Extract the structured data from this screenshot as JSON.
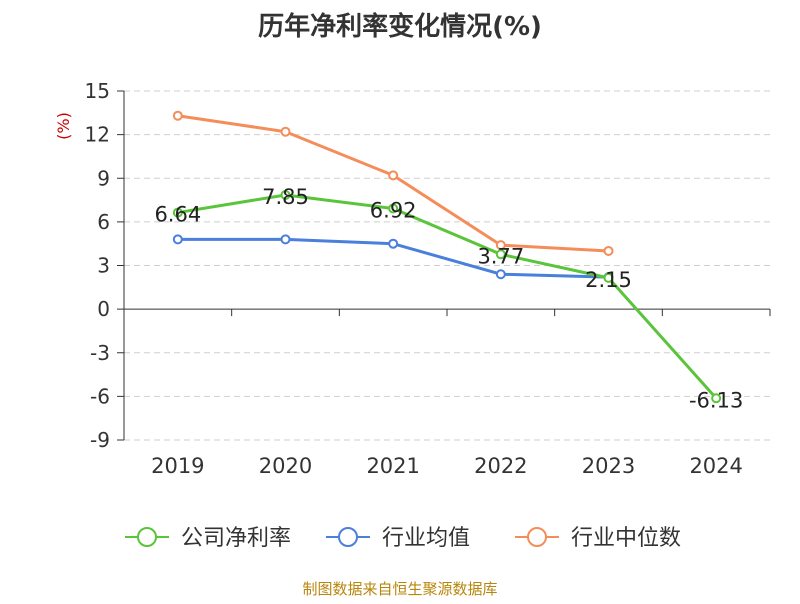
{
  "chart_data": {
    "type": "line",
    "title": "历年净利率变化情况(%)",
    "ylabel": "(%)",
    "categories": [
      "2019",
      "2020",
      "2021",
      "2022",
      "2023",
      "2024"
    ],
    "ylim": [
      -9,
      15
    ],
    "yticks": [
      15,
      12,
      9,
      6,
      3,
      0,
      -3,
      -6,
      -9
    ],
    "grid": true,
    "legend_position": "bottom",
    "series": [
      {
        "name": "公司净利率",
        "color": "#5ac43a",
        "values": [
          6.64,
          7.85,
          6.92,
          3.77,
          2.15,
          -6.13
        ],
        "labels": [
          "6.64",
          "7.85",
          "6.92",
          "3.77",
          "2.15",
          "-6.13"
        ]
      },
      {
        "name": "行业均值",
        "color": "#4a7fdc",
        "values": [
          4.8,
          4.8,
          4.5,
          2.4,
          2.2,
          null
        ]
      },
      {
        "name": "行业中位数",
        "color": "#f48d5a",
        "values": [
          13.3,
          12.2,
          9.2,
          4.4,
          4.0,
          null
        ]
      }
    ]
  },
  "footer": "制图数据来自恒生聚源数据库"
}
